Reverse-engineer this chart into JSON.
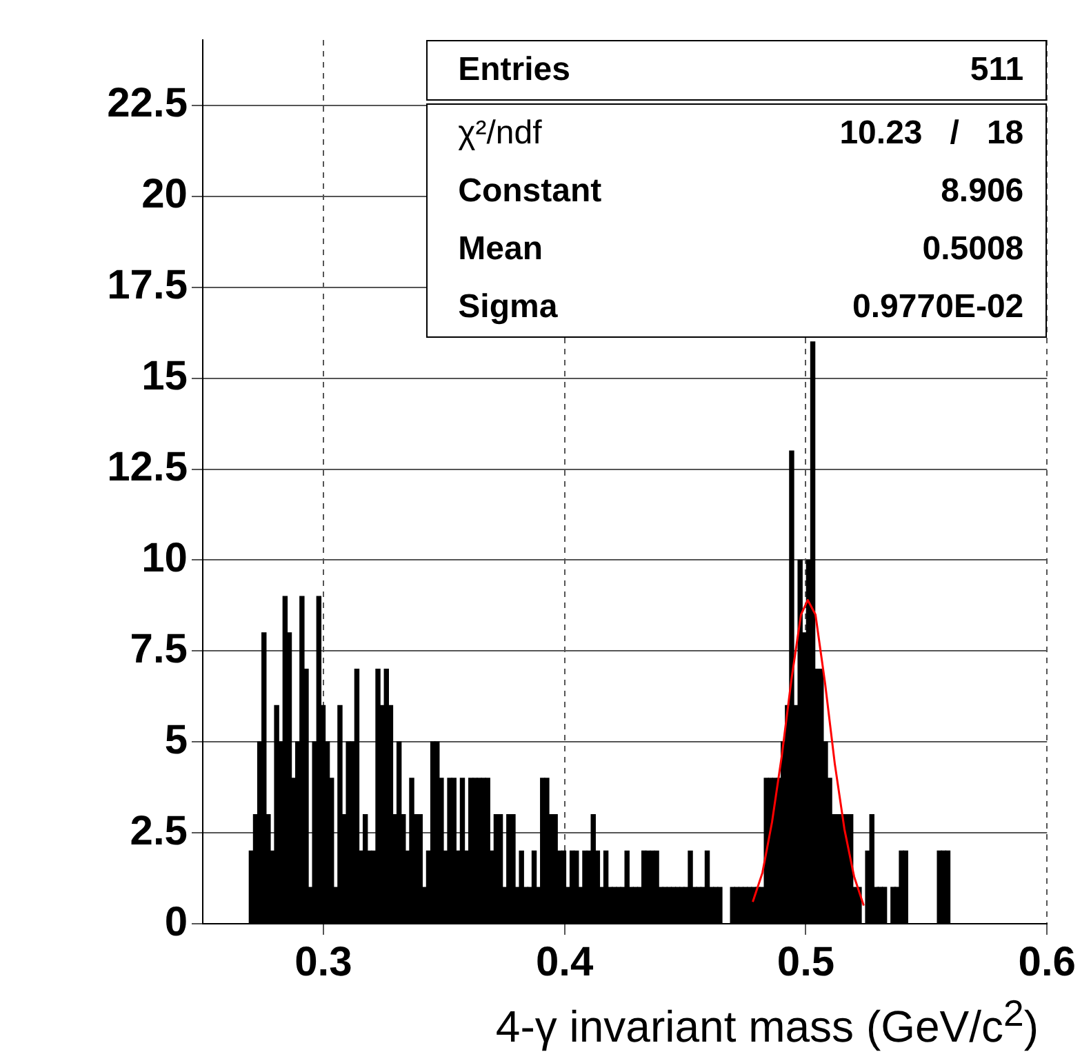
{
  "chart_data": {
    "type": "histogram",
    "xlabel": "4-γ invariant mass (GeV/c$^{2}$)",
    "bins": [
      0.25,
      0.25175,
      0.2535,
      0.25525,
      0.257,
      0.25875,
      0.2605,
      0.26225,
      0.264,
      0.26575,
      0.2675,
      0.26925,
      0.271,
      0.27275,
      0.2745,
      0.27625,
      0.278,
      0.27975,
      0.2815,
      0.28325,
      0.285,
      0.28675,
      0.2885,
      0.29025,
      0.292,
      0.29375,
      0.2955,
      0.29725,
      0.299,
      0.30075,
      0.3025,
      0.30425,
      0.306,
      0.30775,
      0.3095,
      0.31125,
      0.313,
      0.31475,
      0.3165,
      0.31825,
      0.32,
      0.32175,
      0.3235,
      0.32525,
      0.327,
      0.32875,
      0.3305,
      0.33225,
      0.334,
      0.33575,
      0.3375,
      0.33925,
      0.341,
      0.34275,
      0.3445,
      0.34625,
      0.348,
      0.34975,
      0.3515,
      0.35325,
      0.355,
      0.35675,
      0.3585,
      0.36025,
      0.362,
      0.36375,
      0.3655,
      0.36725,
      0.369,
      0.37075,
      0.3725,
      0.37425,
      0.376,
      0.37775,
      0.3795,
      0.38125,
      0.383,
      0.38475,
      0.3865,
      0.38825,
      0.39,
      0.39175,
      0.3935,
      0.39525,
      0.397,
      0.39875,
      0.4005,
      0.40225,
      0.404,
      0.40575,
      0.4075,
      0.40925,
      0.411,
      0.41275,
      0.4145,
      0.41625,
      0.418,
      0.41975,
      0.4215,
      0.42325,
      0.425,
      0.42675,
      0.4285,
      0.43025,
      0.432,
      0.43375,
      0.4355,
      0.43725,
      0.439,
      0.44075,
      0.4425,
      0.44425,
      0.446,
      0.44775,
      0.4495,
      0.45125,
      0.453,
      0.45475,
      0.4565,
      0.45825,
      0.46,
      0.46175,
      0.4635,
      0.46525,
      0.467,
      0.46875,
      0.4705,
      0.47225,
      0.474,
      0.47575,
      0.4775,
      0.47925,
      0.481,
      0.48275,
      0.4845,
      0.48625,
      0.488,
      0.48975,
      0.4915,
      0.49325,
      0.495,
      0.49675,
      0.4985,
      0.50025,
      0.502,
      0.50375,
      0.5055,
      0.50725,
      0.509,
      0.51075,
      0.5125,
      0.51425,
      0.516,
      0.51775,
      0.5195,
      0.52125,
      0.523,
      0.52475,
      0.5265,
      0.52825,
      0.53,
      0.53175,
      0.5335,
      0.53525,
      0.537,
      0.53875,
      0.5405,
      0.54225,
      0.544,
      0.54575,
      0.5475,
      0.54925,
      0.551,
      0.55275,
      0.5545,
      0.55625,
      0.558,
      0.55975,
      0.5615,
      0.56325,
      0.565,
      0.56675,
      0.5685,
      0.57025,
      0.572,
      0.57375,
      0.5755,
      0.57725,
      0.579,
      0.58075,
      0.5825,
      0.58425,
      0.586,
      0.58775,
      0.5895,
      0.59125,
      0.593,
      0.59475,
      0.5965,
      0.59825,
      0.6
    ],
    "series": [
      {
        "type": "histogram",
        "color": "#000000",
        "values": [
          0,
          0,
          0,
          0,
          0,
          0,
          0,
          0,
          0,
          0,
          0,
          2,
          3,
          5,
          8,
          3,
          2,
          6,
          5,
          9,
          8,
          4,
          5,
          9,
          7,
          1,
          5,
          9,
          6,
          5,
          4,
          1,
          6,
          3,
          5,
          5,
          7,
          2,
          3,
          2,
          2,
          7,
          6,
          7,
          6,
          3,
          5,
          3,
          2,
          4,
          3,
          3,
          1,
          2,
          5,
          5,
          4,
          2,
          4,
          4,
          2,
          4,
          2,
          4,
          4,
          4,
          4,
          4,
          2,
          3,
          3,
          1,
          3,
          3,
          1,
          2,
          1,
          1,
          2,
          1,
          4,
          4,
          3,
          3,
          2,
          2,
          1,
          2,
          2,
          1,
          2,
          2,
          3,
          2,
          1,
          2,
          1,
          1,
          1,
          1,
          2,
          1,
          1,
          1,
          2,
          2,
          2,
          2,
          1,
          1,
          1,
          1,
          1,
          1,
          1,
          2,
          1,
          1,
          1,
          2,
          1,
          1,
          1,
          0,
          0,
          1,
          1,
          1,
          1,
          1,
          1,
          1,
          1,
          4,
          4,
          4,
          4,
          5,
          6,
          13,
          6,
          10,
          8,
          10,
          16,
          7,
          7,
          5,
          4,
          3,
          3,
          3,
          3,
          3,
          1,
          1,
          0,
          2,
          3,
          1,
          1,
          1,
          0,
          1,
          1,
          2,
          2,
          0,
          0,
          0,
          0,
          0,
          0,
          0,
          2,
          2,
          2,
          0,
          0,
          0,
          0,
          0,
          0,
          0,
          0,
          0,
          0,
          0,
          0,
          0,
          0,
          0,
          0,
          0,
          0,
          0,
          0,
          0,
          0,
          0
        ]
      },
      {
        "type": "line",
        "color": "#ff0000",
        "x": [
          0.478,
          0.482,
          0.486,
          0.49,
          0.494,
          0.498,
          0.5008,
          0.504,
          0.508,
          0.512,
          0.516,
          0.52,
          0.524
        ],
        "values": [
          0.6,
          1.4,
          2.8,
          4.6,
          6.7,
          8.5,
          8.9,
          8.5,
          6.6,
          4.4,
          2.6,
          1.3,
          0.5
        ]
      }
    ],
    "xlim": [
      0.25,
      0.6
    ],
    "xticks": [
      0.3,
      0.4,
      0.5,
      0.6
    ],
    "ylim": [
      0,
      24.3
    ],
    "yticks": [
      0,
      2.5,
      5,
      7.5,
      10,
      12.5,
      15,
      17.5,
      20,
      22.5
    ],
    "grid": true,
    "legend": false,
    "marker": "none",
    "annotations": [
      "Entries",
      "511",
      "χ²/ndf",
      "10.23   /   18",
      "Constant",
      "8.906",
      "Mean",
      "0.5008",
      "Sigma",
      "0.9770E-02"
    ]
  }
}
